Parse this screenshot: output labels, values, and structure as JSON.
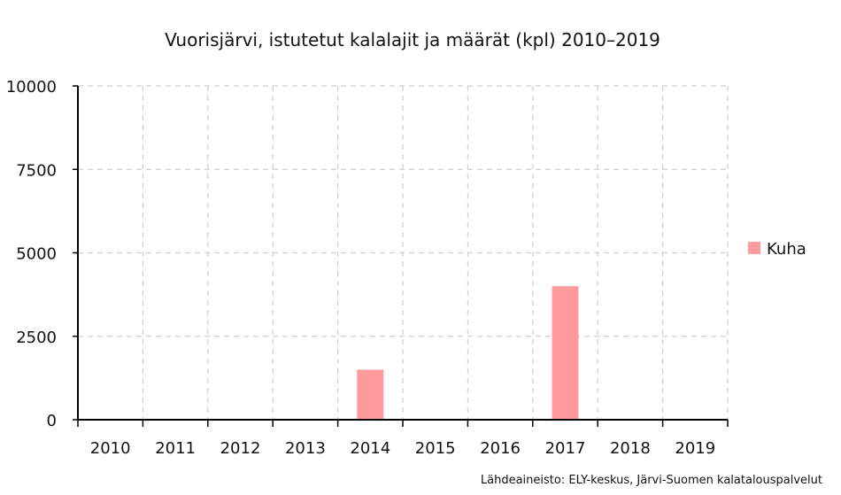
{
  "chart_data": {
    "type": "bar",
    "title": "Vuorisjärvi, istutetut kalalajit ja määrät (kpl) 2010–2019",
    "categories": [
      "2010",
      "2011",
      "2012",
      "2013",
      "2014",
      "2015",
      "2016",
      "2017",
      "2018",
      "2019"
    ],
    "series": [
      {
        "name": "Kuha",
        "values": [
          0,
          0,
          0,
          0,
          1500,
          0,
          0,
          4000,
          0,
          0
        ],
        "color": "#ff9b9b"
      }
    ],
    "ylim": [
      0,
      10000
    ],
    "yticks": [
      "0",
      "2500",
      "5000",
      "7500",
      "10000"
    ],
    "grid": true,
    "legend_position": "right",
    "xlabel": "",
    "ylabel": ""
  },
  "source_note": "Lähdeaineisto: ELY-keskus, Järvi-Suomen kalatalouspalvelut"
}
